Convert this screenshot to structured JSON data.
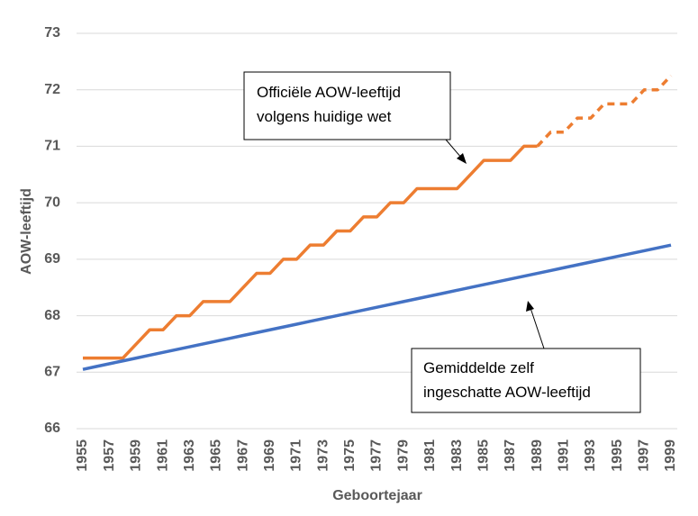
{
  "chart_data": {
    "type": "line",
    "xlabel": "Geboortejaar",
    "ylabel": "AOW-leeftijd",
    "x": [
      1955,
      1956,
      1957,
      1958,
      1959,
      1960,
      1961,
      1962,
      1963,
      1964,
      1965,
      1966,
      1967,
      1968,
      1969,
      1970,
      1971,
      1972,
      1973,
      1974,
      1975,
      1976,
      1977,
      1978,
      1979,
      1980,
      1981,
      1982,
      1983,
      1984,
      1985,
      1986,
      1987,
      1988,
      1989,
      1990,
      1991,
      1992,
      1993,
      1994,
      1995,
      1996,
      1997,
      1998,
      1999
    ],
    "xlim": [
      1955,
      1999
    ],
    "xticks": [
      1955,
      1957,
      1959,
      1961,
      1963,
      1965,
      1967,
      1969,
      1971,
      1973,
      1975,
      1977,
      1979,
      1981,
      1983,
      1985,
      1987,
      1989,
      1991,
      1993,
      1995,
      1997,
      1999
    ],
    "ylim": [
      66,
      73
    ],
    "yticks": [
      66,
      67,
      68,
      69,
      70,
      71,
      72,
      73
    ],
    "grid": true,
    "series": [
      {
        "color": "#ed7d31",
        "dash_from": 1989,
        "values": [
          67.25,
          67.25,
          67.25,
          67.25,
          67.5,
          67.75,
          67.75,
          68,
          68,
          68.25,
          68.25,
          68.25,
          68.5,
          68.75,
          68.75,
          69,
          69,
          69.25,
          69.25,
          69.5,
          69.5,
          69.75,
          69.75,
          70,
          70,
          70.25,
          70.25,
          70.25,
          70.25,
          70.5,
          70.75,
          70.75,
          70.75,
          71,
          71,
          71.25,
          71.25,
          71.5,
          71.5,
          71.75,
          71.75,
          71.75,
          72,
          72,
          72.25
        ]
      },
      {
        "color": "#4472c4",
        "values": [
          67.05,
          67.1,
          67.15,
          67.2,
          67.25,
          67.3,
          67.35,
          67.4,
          67.45,
          67.5,
          67.55,
          67.6,
          67.65,
          67.7,
          67.75,
          67.8,
          67.85,
          67.9,
          67.95,
          68,
          68.05,
          68.1,
          68.15,
          68.2,
          68.25,
          68.3,
          68.35,
          68.4,
          68.45,
          68.5,
          68.55,
          68.6,
          68.65,
          68.7,
          68.75,
          68.8,
          68.85,
          68.9,
          68.95,
          69,
          69.05,
          69.1,
          69.15,
          69.2,
          69.25
        ]
      }
    ],
    "annotations": [
      {
        "lines": [
          "Officiële AOW-leeftijd",
          "volgens huidige wet"
        ]
      },
      {
        "lines": [
          "Gemiddelde zelf",
          "ingeschatte AOW-leeftijd"
        ]
      }
    ]
  }
}
